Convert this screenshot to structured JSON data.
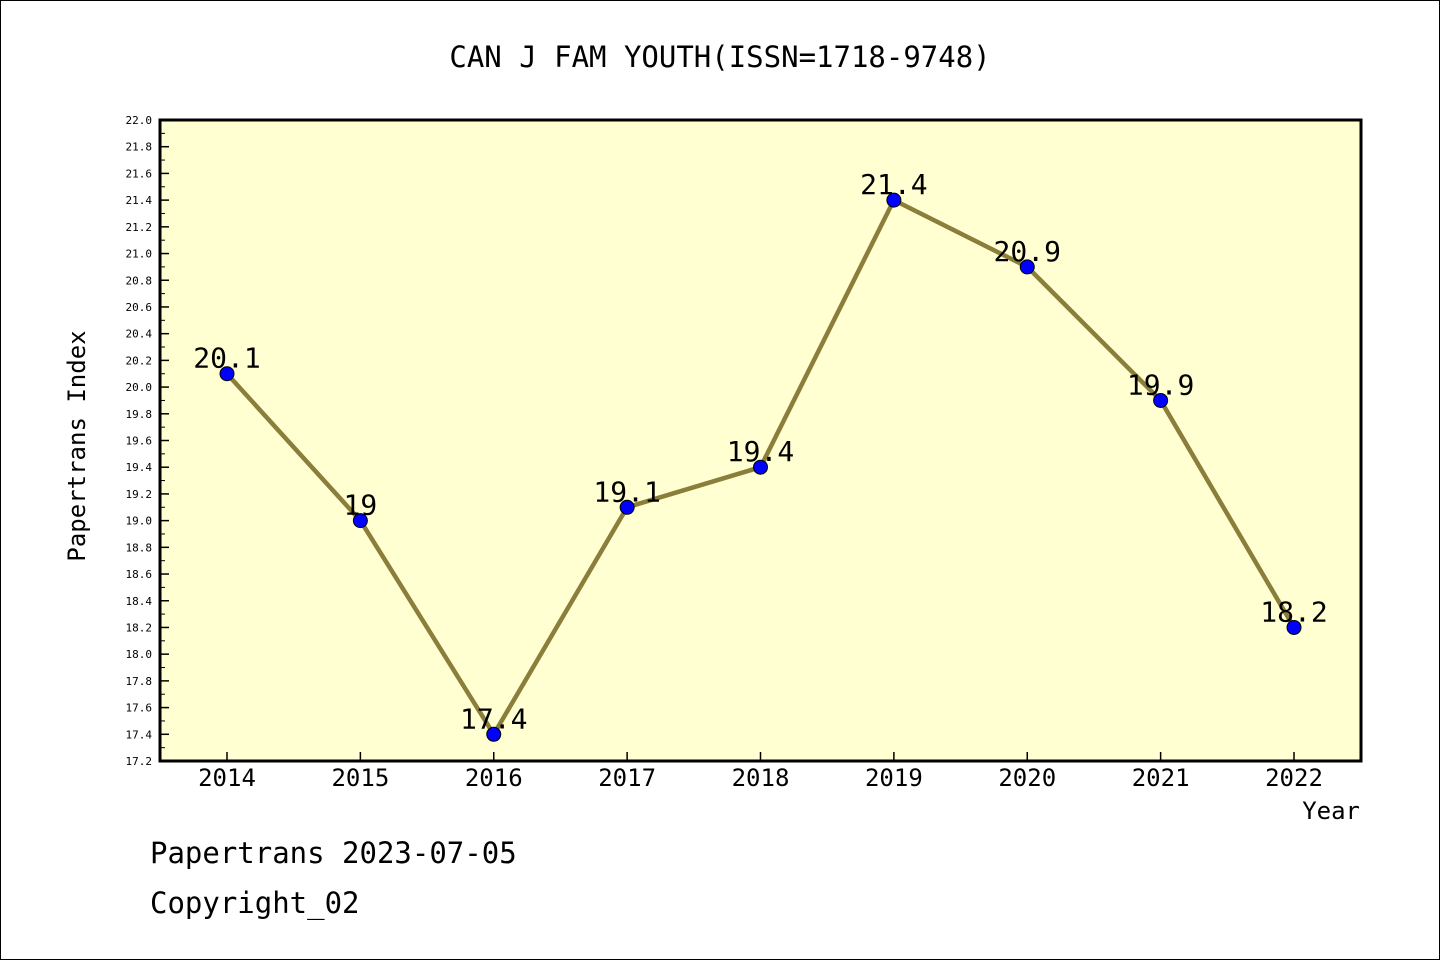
{
  "chart_data": {
    "type": "line",
    "title": "CAN J FAM YOUTH(ISSN=1718-9748)",
    "xlabel": "Year",
    "ylabel": "Papertrans Index",
    "categories": [
      "2014",
      "2015",
      "2016",
      "2017",
      "2018",
      "2019",
      "2020",
      "2021",
      "2022"
    ],
    "series": [
      {
        "values": [
          20.1,
          19.0,
          17.4,
          19.1,
          19.4,
          21.4,
          20.9,
          19.9,
          18.2
        ],
        "data_labels": [
          "20.1",
          "19",
          "17.4",
          "19.1",
          "19.4",
          "21.4",
          "20.9",
          "19.9",
          "18.2"
        ]
      }
    ],
    "ylim": [
      17.2,
      22.0
    ],
    "y_ticks": [
      "17.2",
      "17.4",
      "17.6",
      "17.8",
      "18.0",
      "18.2",
      "18.4",
      "18.6",
      "18.8",
      "19.0",
      "19.2",
      "19.4",
      "19.6",
      "19.8",
      "20.0",
      "20.2",
      "20.4",
      "20.6",
      "20.8",
      "21.0",
      "21.2",
      "21.4",
      "21.6",
      "21.8",
      "22.0"
    ],
    "grid": false,
    "legend": "none",
    "colors": {
      "plot_background": "#ffffd2",
      "line": "#8b7d3a",
      "marker": "#0000ff",
      "axis": "#000000"
    }
  },
  "footer": {
    "line1": "Papertrans 2023-07-05",
    "line2": "Copyright_02"
  }
}
